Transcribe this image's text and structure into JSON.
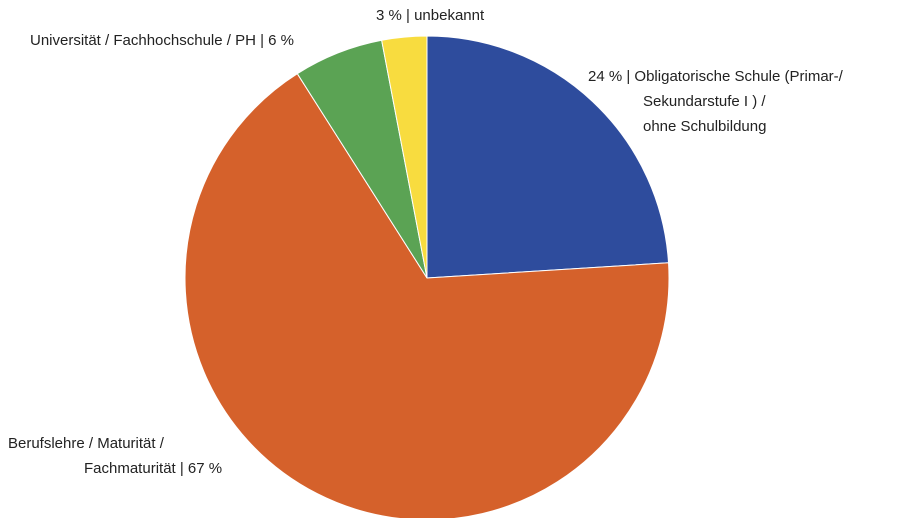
{
  "chart_data": {
    "type": "pie",
    "values": [
      24,
      67,
      6,
      3
    ],
    "value_labels": [
      [
        "24 % | Obligatorische Schule (Primar-/",
        "Sekundarstufe I ) /",
        "ohne Schulbildung"
      ],
      [
        "Berufslehre / Maturität /",
        "Fachmaturität | 67 %"
      ],
      [
        "Universität / Fachhochschule / PH | 6 %"
      ],
      [
        "3 % | unbekannt"
      ]
    ],
    "colors": [
      "#2e4c9d",
      "#d5612b",
      "#5ba354",
      "#f8dc3f"
    ]
  }
}
